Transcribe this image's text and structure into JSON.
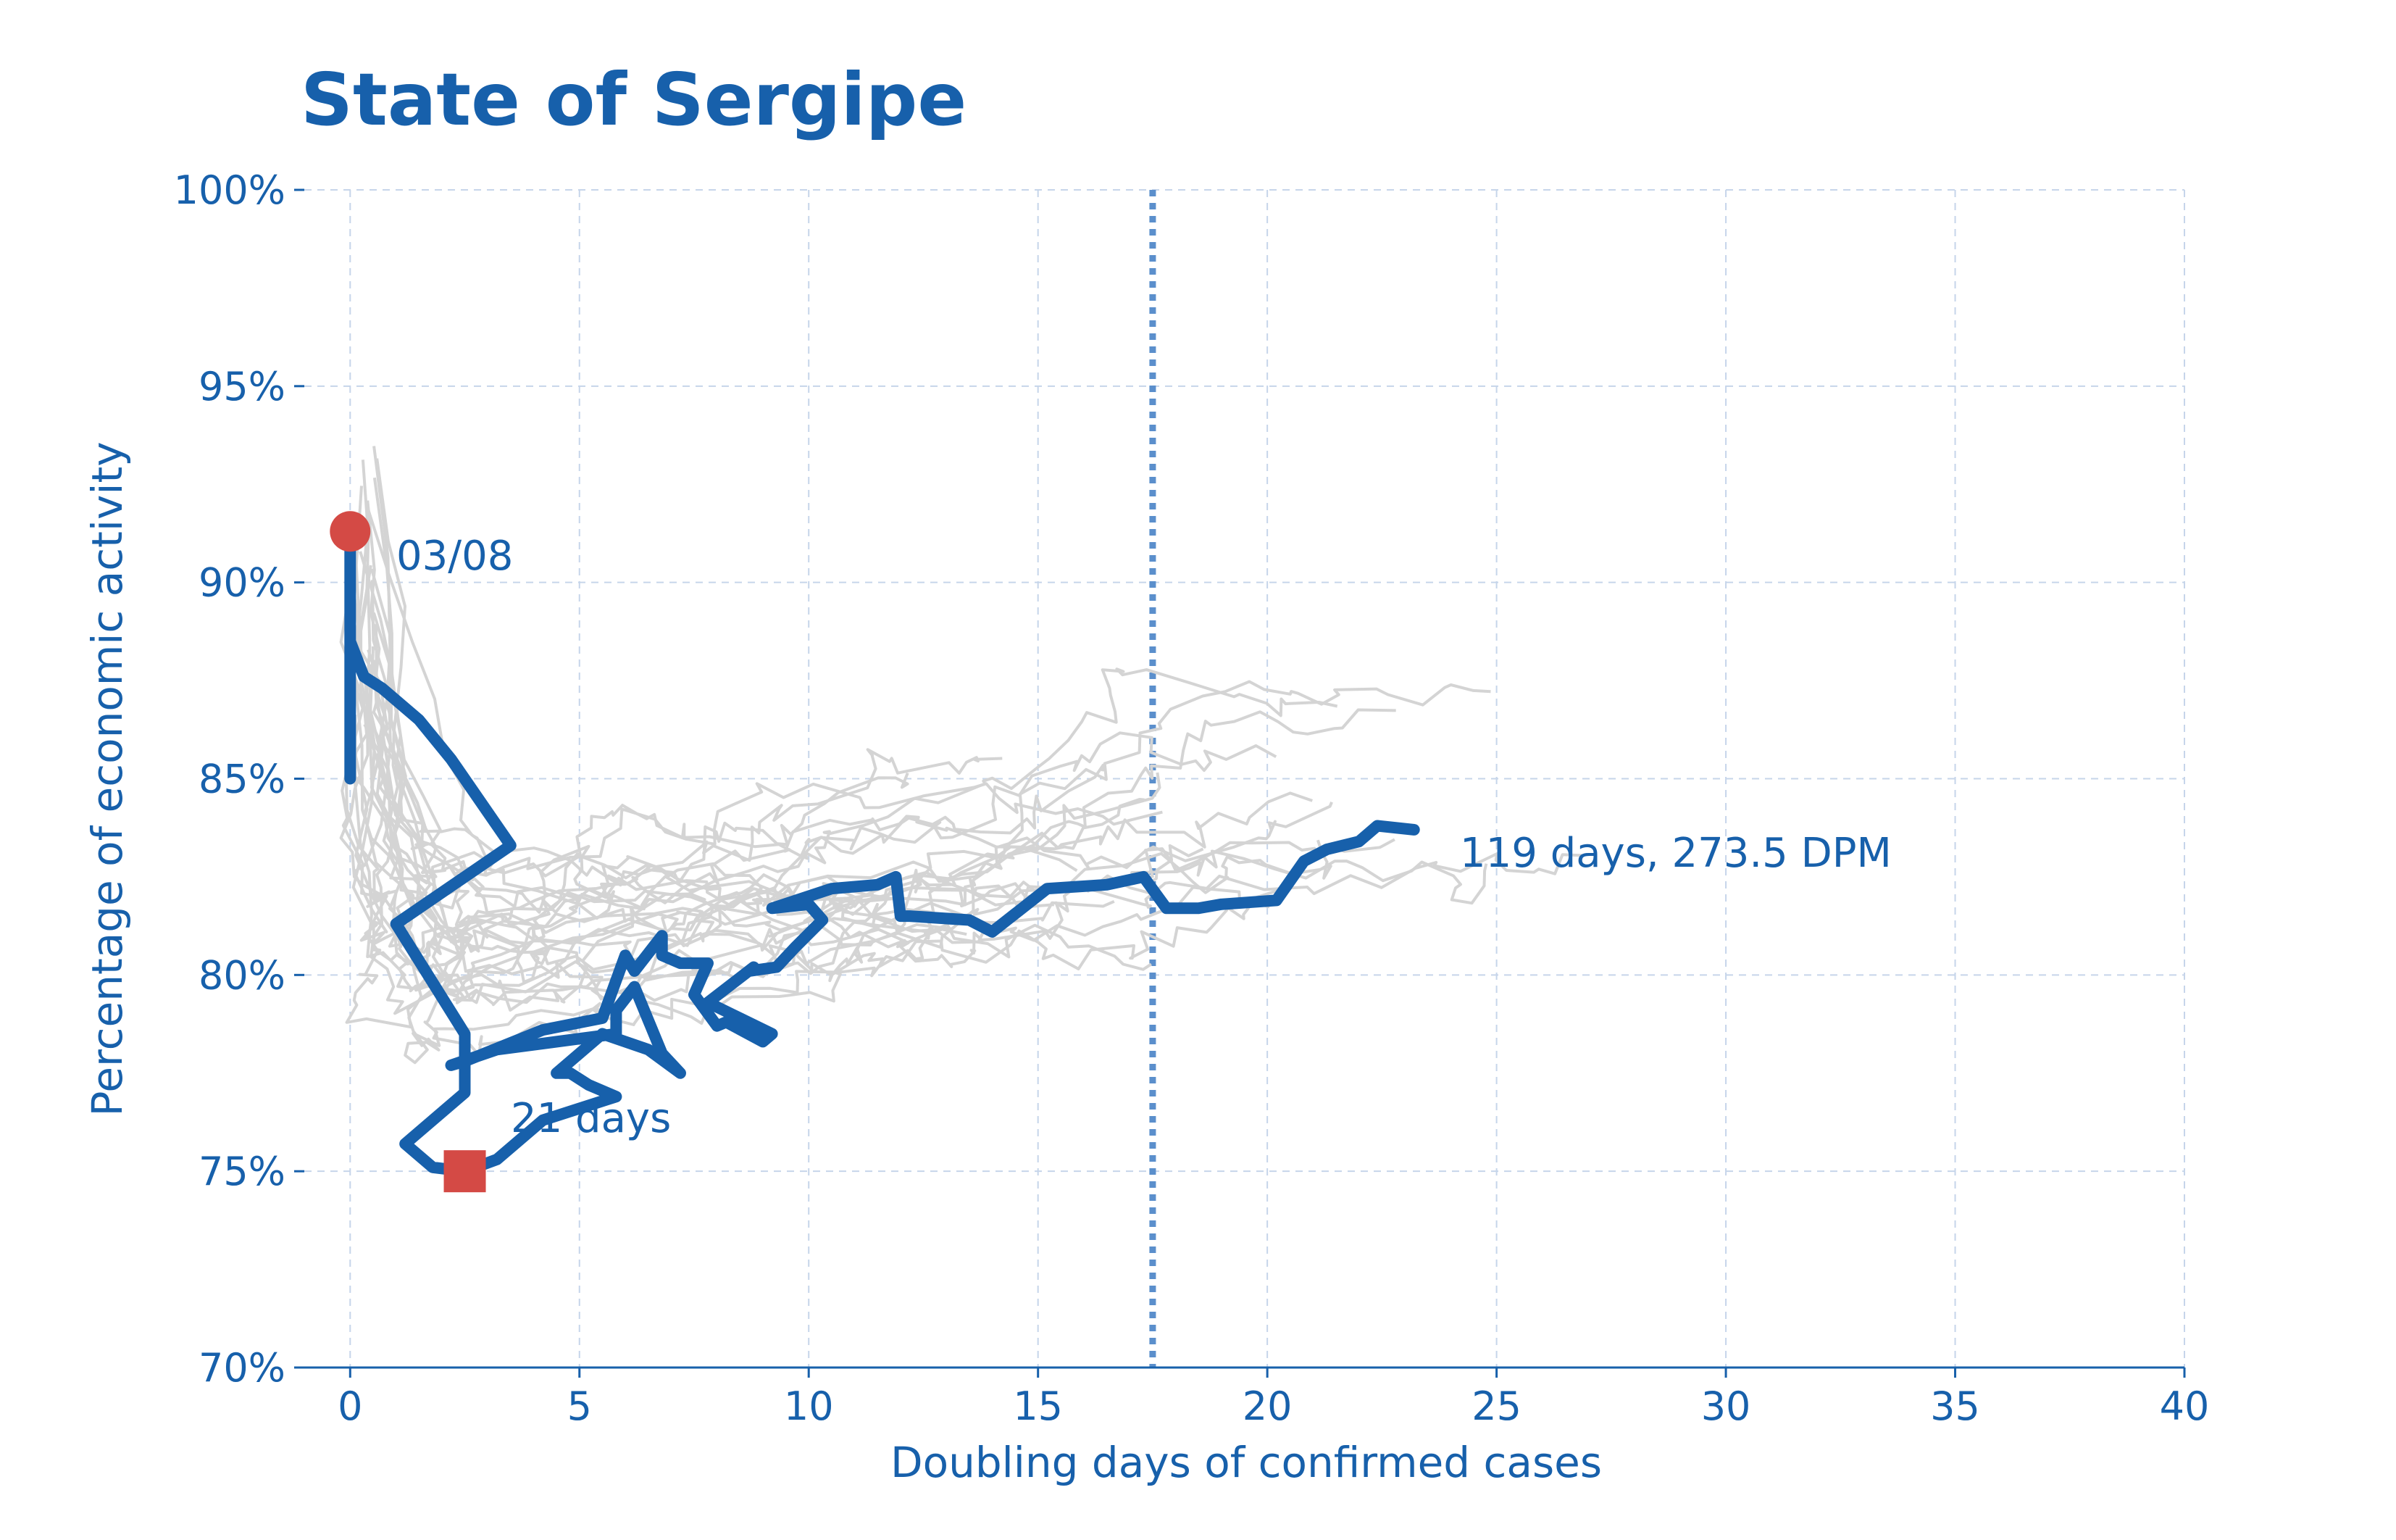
{
  "chart_data": {
    "type": "line",
    "title": "State of Sergipe",
    "xlabel": "Doubling days of confirmed cases",
    "ylabel": "Percentage of economic activity",
    "xlim": [
      -1,
      40
    ],
    "ylim": [
      70,
      100
    ],
    "xticks": [
      0,
      5,
      10,
      15,
      20,
      25,
      30,
      35,
      40
    ],
    "yticks": [
      70,
      75,
      80,
      85,
      90,
      95,
      100
    ],
    "ytick_labels": [
      "70%",
      "75%",
      "80%",
      "85%",
      "90%",
      "95%",
      "100%"
    ],
    "grid": true,
    "reference_line_x": 17.5,
    "annotations": {
      "start": "03/08",
      "mid": "21 days",
      "end": "119 days, 273.5 DPM"
    },
    "colors": {
      "highlight": "#1760ab",
      "background_series": "#d4d4d4",
      "start_marker": "#d44a45",
      "mid_marker": "#d44a45",
      "reference_line": "#5b8fcc",
      "grid": "#c6d5ea"
    },
    "series": [
      {
        "highlight": true,
        "x": [
          0,
          0,
          0,
          0.3,
          0.7,
          1.5,
          2.2,
          3.5,
          1,
          2.5,
          2.5,
          1.2,
          1.8,
          2.5,
          3.2,
          4.2,
          5.8,
          5.2,
          4.8,
          4.5,
          5.5,
          6.5,
          7.2,
          6.8,
          6.2,
          5.8,
          5.8,
          3.2,
          2.2,
          2.5,
          4.2,
          5.5,
          6,
          6.2,
          6.8,
          6.8,
          7.2,
          7.8,
          7.5,
          8,
          8.2,
          9,
          9.2,
          7.8,
          8.8,
          8.7,
          9.3,
          9.7,
          10.3,
          10,
          9.2,
          10.5,
          11.5,
          11.9,
          12,
          12.2,
          13.5,
          14,
          15.2,
          16.5,
          17.3,
          17.8,
          18.5,
          19,
          20.2,
          20.8,
          21.3,
          22,
          22.4,
          23.2
        ],
        "y": [
          91.3,
          85,
          88.5,
          87.6,
          87.3,
          86.5,
          85.5,
          83.3,
          81.3,
          78.5,
          77,
          75.7,
          75.1,
          75,
          75.3,
          76.3,
          76.9,
          77.2,
          77.5,
          77.5,
          78.5,
          78.1,
          77.5,
          78,
          79.7,
          79.1,
          78.5,
          78.1,
          77.7,
          77.8,
          78.6,
          78.9,
          80.5,
          80.1,
          81,
          80.5,
          80.3,
          80.3,
          79.5,
          78.7,
          78.8,
          78.3,
          78.5,
          79.3,
          80.2,
          80.1,
          80.2,
          80.7,
          81.4,
          81.8,
          81.7,
          82.2,
          82.3,
          82.5,
          81.5,
          81.5,
          81.4,
          81.1,
          82.2,
          82.3,
          82.5,
          81.7,
          81.7,
          81.8,
          81.9,
          82.9,
          83.2,
          83.4,
          83.8,
          83.7
        ]
      }
    ]
  }
}
